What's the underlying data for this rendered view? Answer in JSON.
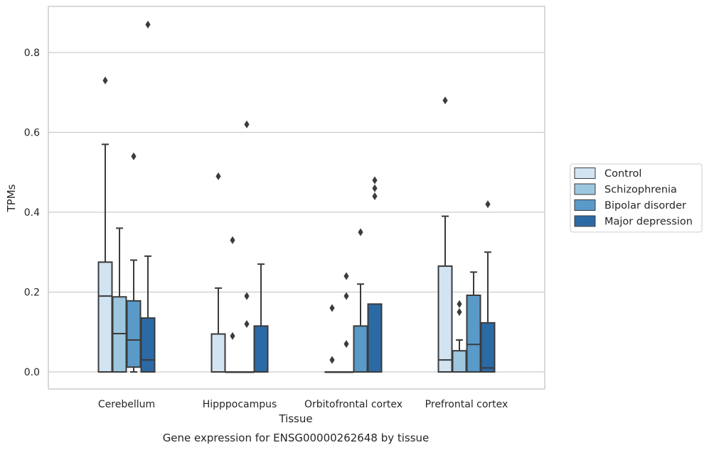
{
  "chart_data": {
    "type": "box",
    "caption": "Gene expression for ENSG00000262648 by tissue",
    "xlabel": "Tissue",
    "ylabel": "TPMs",
    "ylim": [
      -0.042,
      0.915
    ],
    "yticks": [
      0.0,
      0.2,
      0.4,
      0.6,
      0.8
    ],
    "ytick_labels": [
      "0.0",
      "0.2",
      "0.4",
      "0.6",
      "0.8"
    ],
    "grid": "horizontal",
    "legend_position": "right",
    "categories": [
      "Cerebellum",
      "Hipppocampus",
      "Orbitofrontal cortex",
      "Prefrontal cortex"
    ],
    "series": [
      {
        "name": "Control",
        "color": "#d2e3f1",
        "boxes": [
          {
            "q1": 0.0,
            "median": 0.19,
            "q3": 0.275,
            "whisker_low": 0.0,
            "whisker_high": 0.57,
            "outliers": [
              0.73
            ]
          },
          {
            "q1": 0.0,
            "median": 0.0,
            "q3": 0.095,
            "whisker_low": 0.0,
            "whisker_high": 0.21,
            "outliers": [
              0.49
            ]
          },
          {
            "q1": 0.0,
            "median": 0.0,
            "q3": 0.0,
            "whisker_low": 0.0,
            "whisker_high": 0.0,
            "outliers": [
              0.16,
              0.03
            ]
          },
          {
            "q1": 0.0,
            "median": 0.03,
            "q3": 0.265,
            "whisker_low": 0.0,
            "whisker_high": 0.39,
            "outliers": [
              0.68
            ]
          }
        ]
      },
      {
        "name": "Schizophrenia",
        "color": "#9dc7df",
        "boxes": [
          {
            "q1": 0.0,
            "median": 0.096,
            "q3": 0.188,
            "whisker_low": 0.0,
            "whisker_high": 0.36,
            "outliers": []
          },
          {
            "q1": 0.0,
            "median": 0.0,
            "q3": 0.0,
            "whisker_low": 0.0,
            "whisker_high": 0.0,
            "outliers": [
              0.33,
              0.09
            ]
          },
          {
            "q1": 0.0,
            "median": 0.0,
            "q3": 0.0,
            "whisker_low": 0.0,
            "whisker_high": 0.0,
            "outliers": [
              0.24,
              0.19,
              0.07
            ]
          },
          {
            "q1": 0.0,
            "median": 0.0,
            "q3": 0.053,
            "whisker_low": 0.0,
            "whisker_high": 0.08,
            "outliers": [
              0.17,
              0.15
            ]
          }
        ]
      },
      {
        "name": "Bipolar disorder",
        "color": "#5a9ac8",
        "boxes": [
          {
            "q1": 0.012,
            "median": 0.08,
            "q3": 0.178,
            "whisker_low": 0.0,
            "whisker_high": 0.28,
            "outliers": [
              0.54
            ]
          },
          {
            "q1": 0.0,
            "median": 0.0,
            "q3": 0.0,
            "whisker_low": 0.0,
            "whisker_high": 0.0,
            "outliers": [
              0.62,
              0.19,
              0.12
            ]
          },
          {
            "q1": 0.0,
            "median": 0.0,
            "q3": 0.115,
            "whisker_low": 0.0,
            "whisker_high": 0.22,
            "outliers": [
              0.35
            ]
          },
          {
            "q1": 0.0,
            "median": 0.069,
            "q3": 0.192,
            "whisker_low": 0.0,
            "whisker_high": 0.25,
            "outliers": []
          }
        ]
      },
      {
        "name": "Major depression",
        "color": "#2c6aa6",
        "boxes": [
          {
            "q1": 0.0,
            "median": 0.03,
            "q3": 0.135,
            "whisker_low": 0.0,
            "whisker_high": 0.29,
            "outliers": [
              0.87
            ]
          },
          {
            "q1": 0.0,
            "median": 0.0,
            "q3": 0.115,
            "whisker_low": 0.0,
            "whisker_high": 0.27,
            "outliers": []
          },
          {
            "q1": 0.0,
            "median": 0.0,
            "q3": 0.17,
            "whisker_low": 0.0,
            "whisker_high": 0.17,
            "outliers": [
              0.48,
              0.46,
              0.44
            ]
          },
          {
            "q1": 0.0,
            "median": 0.01,
            "q3": 0.123,
            "whisker_low": 0.0,
            "whisker_high": 0.3,
            "outliers": [
              0.42
            ]
          }
        ]
      }
    ]
  }
}
